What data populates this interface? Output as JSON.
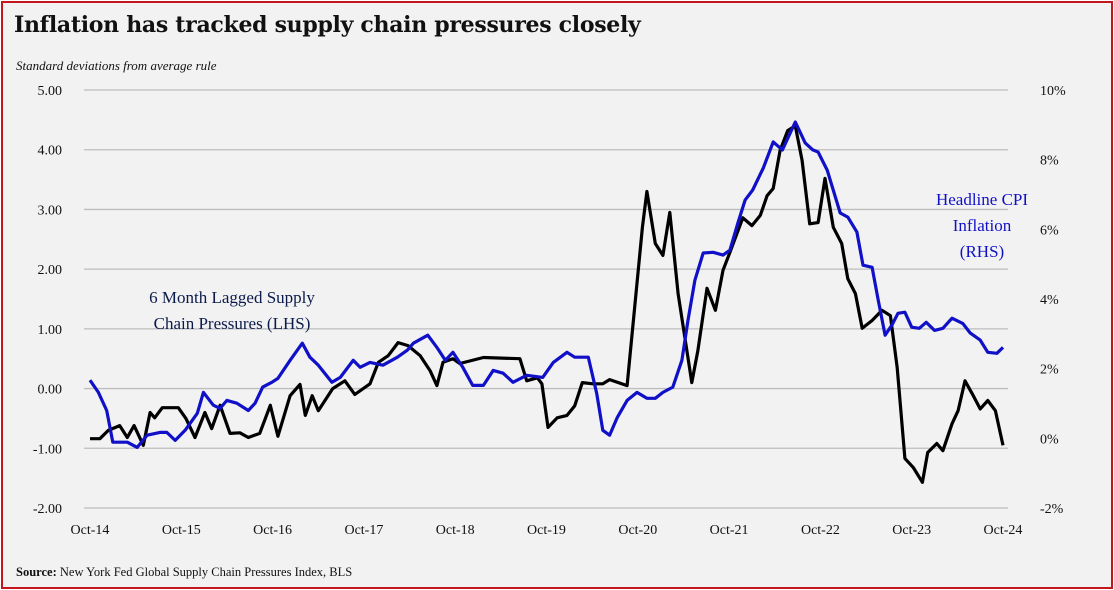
{
  "chart_data": {
    "type": "line",
    "title": "Inflation has tracked supply chain pressures closely",
    "subtitle": "Standard deviations from average rule",
    "source_label": "Source:",
    "source_text": " New York Fed Global Supply Chain Pressures Index, BLS",
    "x_unit": "months since Oct-14",
    "x_ticks": [
      "Oct-14",
      "Oct-15",
      "Oct-16",
      "Oct-17",
      "Oct-18",
      "Oct-19",
      "Oct-20",
      "Oct-21",
      "Oct-22",
      "Oct-23",
      "Oct-24"
    ],
    "y_left": {
      "ticks": [
        "5.00",
        "4.00",
        "3.00",
        "2.00",
        "1.00",
        "0.00",
        "-1.00",
        "-2.00"
      ],
      "range": [
        -2,
        5
      ]
    },
    "y_right": {
      "ticks": [
        "10%",
        "8%",
        "6%",
        "4%",
        "2%",
        "0%",
        "-2%"
      ],
      "range": [
        -2,
        10
      ]
    },
    "grid": true,
    "annotations": {
      "supply": [
        "6 Month Lagged Supply",
        "Chain Pressures (LHS)"
      ],
      "cpi": [
        "Headline CPI",
        "Inflation",
        "(RHS)"
      ]
    },
    "series": [
      {
        "name": "6 Month Lagged Supply Chain Pressures (LHS)",
        "axis": "left",
        "color": "#000000",
        "points": [
          [
            0,
            -0.84
          ],
          [
            1.3,
            -0.84
          ],
          [
            2.4,
            -0.7
          ],
          [
            3.9,
            -0.62
          ],
          [
            4.9,
            -0.82
          ],
          [
            5.8,
            -0.62
          ],
          [
            6.6,
            -0.84
          ],
          [
            7,
            -0.95
          ],
          [
            7.9,
            -0.4
          ],
          [
            8.5,
            -0.49
          ],
          [
            9.5,
            -0.32
          ],
          [
            11.6,
            -0.32
          ],
          [
            12.6,
            -0.5
          ],
          [
            13.8,
            -0.82
          ],
          [
            15.1,
            -0.4
          ],
          [
            16,
            -0.67
          ],
          [
            17.1,
            -0.28
          ],
          [
            18.4,
            -0.75
          ],
          [
            19.7,
            -0.74
          ],
          [
            20.8,
            -0.82
          ],
          [
            22.3,
            -0.75
          ],
          [
            23.7,
            -0.28
          ],
          [
            24.7,
            -0.8
          ],
          [
            26.3,
            -0.12
          ],
          [
            27.6,
            0.07
          ],
          [
            28.3,
            -0.45
          ],
          [
            29.2,
            -0.12
          ],
          [
            30,
            -0.37
          ],
          [
            31.9,
            0
          ],
          [
            33.5,
            0.13
          ],
          [
            34.8,
            -0.1
          ],
          [
            36.8,
            0.08
          ],
          [
            37.9,
            0.44
          ],
          [
            39.2,
            0.55
          ],
          [
            40.5,
            0.77
          ],
          [
            41.8,
            0.72
          ],
          [
            43.4,
            0.55
          ],
          [
            44.7,
            0.3
          ],
          [
            45.6,
            0.05
          ],
          [
            46.4,
            0.44
          ],
          [
            47.7,
            0.5
          ],
          [
            48.6,
            0.42
          ],
          [
            51.7,
            0.52
          ],
          [
            56.5,
            0.5
          ],
          [
            57.4,
            0.13
          ],
          [
            58.8,
            0.18
          ],
          [
            59.4,
            0.08
          ],
          [
            60.2,
            -0.65
          ],
          [
            61.4,
            -0.49
          ],
          [
            62.7,
            -0.45
          ],
          [
            63.7,
            -0.29
          ],
          [
            64.7,
            0.1
          ],
          [
            66.1,
            0.08
          ],
          [
            67.4,
            0.08
          ],
          [
            68.3,
            0.15
          ],
          [
            70.6,
            0.05
          ],
          [
            72.6,
            2.7
          ],
          [
            73.2,
            3.3
          ],
          [
            74.3,
            2.43
          ],
          [
            75.3,
            2.23
          ],
          [
            76.2,
            2.95
          ],
          [
            77.3,
            1.59
          ],
          [
            79.1,
            0.1
          ],
          [
            79.9,
            0.64
          ],
          [
            81.1,
            1.68
          ],
          [
            82.2,
            1.31
          ],
          [
            83.2,
            1.98
          ],
          [
            84.1,
            2.28
          ],
          [
            85.8,
            2.86
          ],
          [
            87,
            2.73
          ],
          [
            88.1,
            2.9
          ],
          [
            89,
            3.23
          ],
          [
            89.8,
            3.35
          ],
          [
            90.7,
            3.99
          ],
          [
            91.7,
            4.32
          ],
          [
            92.7,
            4.4
          ],
          [
            93.6,
            3.82
          ],
          [
            94.6,
            2.76
          ],
          [
            95.7,
            2.78
          ],
          [
            96.6,
            3.52
          ],
          [
            97.7,
            2.7
          ],
          [
            98.8,
            2.43
          ],
          [
            99.6,
            1.84
          ],
          [
            100.6,
            1.59
          ],
          [
            101.5,
            1.01
          ],
          [
            102.8,
            1.14
          ],
          [
            104.1,
            1.31
          ],
          [
            105.2,
            1.22
          ],
          [
            106.1,
            0.35
          ],
          [
            107.1,
            -1.17
          ],
          [
            108.2,
            -1.32
          ],
          [
            109.4,
            -1.57
          ],
          [
            110.1,
            -1.07
          ],
          [
            111.3,
            -0.92
          ],
          [
            112.1,
            -1.04
          ],
          [
            113.3,
            -0.59
          ],
          [
            114.1,
            -0.37
          ],
          [
            115,
            0.13
          ],
          [
            116.1,
            -0.12
          ],
          [
            117,
            -0.34
          ],
          [
            118,
            -0.2
          ],
          [
            119,
            -0.37
          ],
          [
            120,
            -0.95
          ]
        ]
      },
      {
        "name": "Headline CPI Inflation (RHS)",
        "axis": "right",
        "color": "#1010c8",
        "points": [
          [
            0,
            1.67
          ],
          [
            1.1,
            1.32
          ],
          [
            2.2,
            0.8
          ],
          [
            3,
            -0.11
          ],
          [
            4.9,
            -0.11
          ],
          [
            6.2,
            -0.26
          ],
          [
            7.5,
            0.09
          ],
          [
            9.2,
            0.17
          ],
          [
            10.1,
            0.17
          ],
          [
            11.2,
            -0.06
          ],
          [
            12.5,
            0.23
          ],
          [
            14.1,
            0.72
          ],
          [
            14.9,
            1.32
          ],
          [
            16.2,
            0.95
          ],
          [
            17.1,
            0.86
          ],
          [
            18,
            1.09
          ],
          [
            19.3,
            1.01
          ],
          [
            20.8,
            0.8
          ],
          [
            21.7,
            1.01
          ],
          [
            22.7,
            1.47
          ],
          [
            23.9,
            1.61
          ],
          [
            24.7,
            1.72
          ],
          [
            26.3,
            2.24
          ],
          [
            27.9,
            2.73
          ],
          [
            28.9,
            2.33
          ],
          [
            30,
            2.1
          ],
          [
            31.8,
            1.61
          ],
          [
            32.9,
            1.75
          ],
          [
            34.6,
            2.24
          ],
          [
            35.5,
            2.04
          ],
          [
            36.8,
            2.18
          ],
          [
            38.5,
            2.1
          ],
          [
            40.4,
            2.33
          ],
          [
            41.7,
            2.53
          ],
          [
            42.5,
            2.73
          ],
          [
            44.4,
            2.96
          ],
          [
            45.6,
            2.61
          ],
          [
            46.7,
            2.24
          ],
          [
            47.7,
            2.47
          ],
          [
            49,
            2.04
          ],
          [
            50.3,
            1.52
          ],
          [
            51.7,
            1.52
          ],
          [
            53,
            1.95
          ],
          [
            54.3,
            1.87
          ],
          [
            55.6,
            1.61
          ],
          [
            57.4,
            1.81
          ],
          [
            59.5,
            1.75
          ],
          [
            60.9,
            2.18
          ],
          [
            62.7,
            2.47
          ],
          [
            63.7,
            2.33
          ],
          [
            65.5,
            2.33
          ],
          [
            66.6,
            1.29
          ],
          [
            67.4,
            0.23
          ],
          [
            68.3,
            0.09
          ],
          [
            69.3,
            0.6
          ],
          [
            70.6,
            1.09
          ],
          [
            71.9,
            1.32
          ],
          [
            73.2,
            1.15
          ],
          [
            74.3,
            1.15
          ],
          [
            75.3,
            1.32
          ],
          [
            76.6,
            1.47
          ],
          [
            77.8,
            2.24
          ],
          [
            78.6,
            3.39
          ],
          [
            79.5,
            4.54
          ],
          [
            80.6,
            5.32
          ],
          [
            81.9,
            5.34
          ],
          [
            83.2,
            5.26
          ],
          [
            84.1,
            5.4
          ],
          [
            85.2,
            6.21
          ],
          [
            86.1,
            6.84
          ],
          [
            87.1,
            7.13
          ],
          [
            88.5,
            7.76
          ],
          [
            89.8,
            8.51
          ],
          [
            91,
            8.28
          ],
          [
            92.7,
            9.08
          ],
          [
            94,
            8.48
          ],
          [
            95,
            8.28
          ],
          [
            95.7,
            8.22
          ],
          [
            96.9,
            7.7
          ],
          [
            98.6,
            6.47
          ],
          [
            99.6,
            6.35
          ],
          [
            100.8,
            5.92
          ],
          [
            101.6,
            4.97
          ],
          [
            102.8,
            4.91
          ],
          [
            103.6,
            3.97
          ],
          [
            104.5,
            2.96
          ],
          [
            105.4,
            3.25
          ],
          [
            106.2,
            3.59
          ],
          [
            107.1,
            3.62
          ],
          [
            108,
            3.19
          ],
          [
            109,
            3.16
          ],
          [
            109.9,
            3.33
          ],
          [
            111,
            3.1
          ],
          [
            112.1,
            3.16
          ],
          [
            113.3,
            3.45
          ],
          [
            114.7,
            3.3
          ],
          [
            115.7,
            3.02
          ],
          [
            117,
            2.82
          ],
          [
            118,
            2.47
          ],
          [
            119.2,
            2.44
          ],
          [
            120,
            2.61
          ]
        ]
      }
    ],
    "colors": {
      "frame": "#c4161c",
      "supply_annotation": "#0b1a4a",
      "cpi_annotation": "#1010c8"
    }
  }
}
